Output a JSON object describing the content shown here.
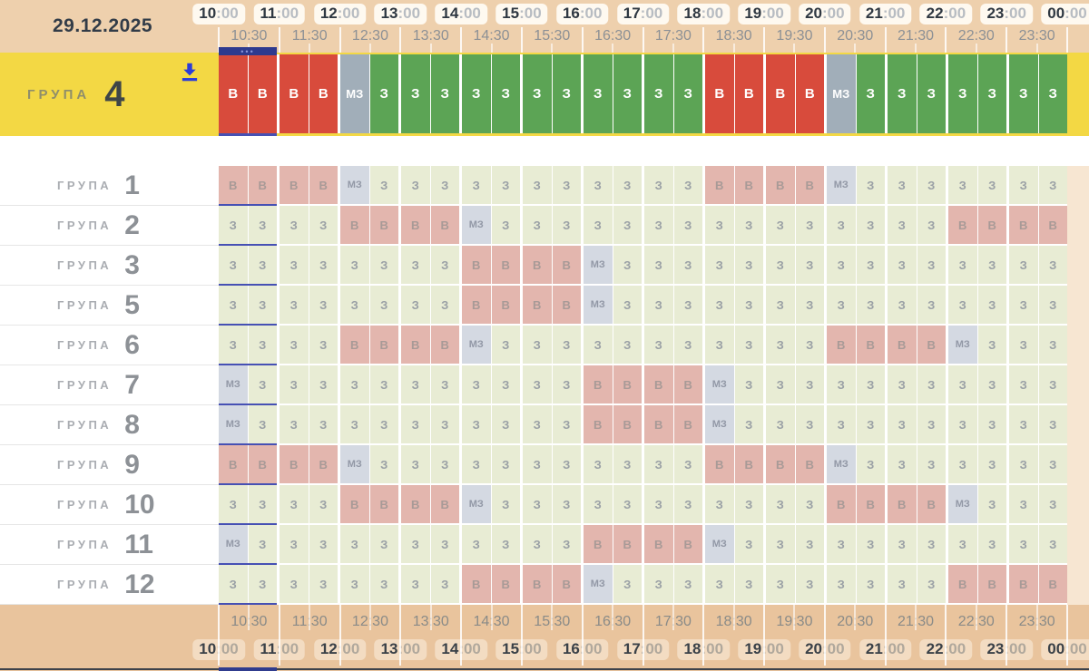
{
  "date": "29.12.2025",
  "timeline": {
    "hours": [
      "10:00",
      "11:00",
      "12:00",
      "13:00",
      "14:00",
      "15:00",
      "16:00",
      "17:00",
      "18:00",
      "19:00",
      "20:00",
      "21:00",
      "22:00",
      "23:00",
      "00:00"
    ],
    "half_hours": [
      "10:30",
      "11:30",
      "12:30",
      "13:30",
      "14:30",
      "15:30",
      "16:30",
      "17:30",
      "18:30",
      "19:30",
      "20:30",
      "21:30",
      "22:30",
      "23:30"
    ]
  },
  "selection": {
    "range_start": "10:00",
    "range_end": "11:00",
    "handle_dots": "•••"
  },
  "legend": {
    "cell_codes": [
      "В",
      "З",
      "МЗ"
    ],
    "colors": {
      "b_strong": "#d84b3c",
      "z_strong": "#5ca455",
      "mz_strong": "#a1aeb9",
      "b_muted": "#e3b6ae",
      "z_muted": "#e8ecd4",
      "mz_muted": "#d4d9e2",
      "active_row_bg": "#f3d844",
      "selection_navy": "#2e3a8e",
      "header_bg": "#eed0ad",
      "footer_bg": "#e9c49d",
      "download_icon": "#2b3cd8"
    }
  },
  "active_group": {
    "label": "ГРУПА",
    "number": "4",
    "cells": [
      "В",
      "В",
      "В",
      "В",
      "МЗ",
      "З",
      "З",
      "З",
      "З",
      "З",
      "З",
      "З",
      "З",
      "З",
      "З",
      "З",
      "В",
      "В",
      "В",
      "В",
      "МЗ",
      "З",
      "З",
      "З",
      "З",
      "З",
      "З",
      "З"
    ]
  },
  "groups": [
    {
      "label": "ГРУПА",
      "number": "1",
      "cells": [
        "В",
        "В",
        "В",
        "В",
        "МЗ",
        "З",
        "З",
        "З",
        "З",
        "З",
        "З",
        "З",
        "З",
        "З",
        "З",
        "З",
        "В",
        "В",
        "В",
        "В",
        "МЗ",
        "З",
        "З",
        "З",
        "З",
        "З",
        "З",
        "З"
      ]
    },
    {
      "label": "ГРУПА",
      "number": "2",
      "cells": [
        "З",
        "З",
        "З",
        "З",
        "В",
        "В",
        "В",
        "В",
        "МЗ",
        "З",
        "З",
        "З",
        "З",
        "З",
        "З",
        "З",
        "З",
        "З",
        "З",
        "З",
        "З",
        "З",
        "З",
        "З",
        "В",
        "В",
        "В",
        "В"
      ]
    },
    {
      "label": "ГРУПА",
      "number": "3",
      "cells": [
        "З",
        "З",
        "З",
        "З",
        "З",
        "З",
        "З",
        "З",
        "В",
        "В",
        "В",
        "В",
        "МЗ",
        "З",
        "З",
        "З",
        "З",
        "З",
        "З",
        "З",
        "З",
        "З",
        "З",
        "З",
        "З",
        "З",
        "З",
        "З"
      ]
    },
    {
      "label": "ГРУПА",
      "number": "5",
      "cells": [
        "З",
        "З",
        "З",
        "З",
        "З",
        "З",
        "З",
        "З",
        "В",
        "В",
        "В",
        "В",
        "МЗ",
        "З",
        "З",
        "З",
        "З",
        "З",
        "З",
        "З",
        "З",
        "З",
        "З",
        "З",
        "З",
        "З",
        "З",
        "З"
      ]
    },
    {
      "label": "ГРУПА",
      "number": "6",
      "cells": [
        "З",
        "З",
        "З",
        "З",
        "В",
        "В",
        "В",
        "В",
        "МЗ",
        "З",
        "З",
        "З",
        "З",
        "З",
        "З",
        "З",
        "З",
        "З",
        "З",
        "З",
        "В",
        "В",
        "В",
        "В",
        "МЗ",
        "З",
        "З",
        "З"
      ]
    },
    {
      "label": "ГРУПА",
      "number": "7",
      "cells": [
        "МЗ",
        "З",
        "З",
        "З",
        "З",
        "З",
        "З",
        "З",
        "З",
        "З",
        "З",
        "З",
        "В",
        "В",
        "В",
        "В",
        "МЗ",
        "З",
        "З",
        "З",
        "З",
        "З",
        "З",
        "З",
        "З",
        "З",
        "З",
        "З"
      ]
    },
    {
      "label": "ГРУПА",
      "number": "8",
      "cells": [
        "МЗ",
        "З",
        "З",
        "З",
        "З",
        "З",
        "З",
        "З",
        "З",
        "З",
        "З",
        "З",
        "В",
        "В",
        "В",
        "В",
        "МЗ",
        "З",
        "З",
        "З",
        "З",
        "З",
        "З",
        "З",
        "З",
        "З",
        "З",
        "З"
      ]
    },
    {
      "label": "ГРУПА",
      "number": "9",
      "cells": [
        "В",
        "В",
        "В",
        "В",
        "МЗ",
        "З",
        "З",
        "З",
        "З",
        "З",
        "З",
        "З",
        "З",
        "З",
        "З",
        "З",
        "В",
        "В",
        "В",
        "В",
        "МЗ",
        "З",
        "З",
        "З",
        "З",
        "З",
        "З",
        "З"
      ]
    },
    {
      "label": "ГРУПА",
      "number": "10",
      "cells": [
        "З",
        "З",
        "З",
        "З",
        "В",
        "В",
        "В",
        "В",
        "МЗ",
        "З",
        "З",
        "З",
        "З",
        "З",
        "З",
        "З",
        "З",
        "З",
        "З",
        "З",
        "В",
        "В",
        "В",
        "В",
        "МЗ",
        "З",
        "З",
        "З"
      ]
    },
    {
      "label": "ГРУПА",
      "number": "11",
      "cells": [
        "МЗ",
        "З",
        "З",
        "З",
        "З",
        "З",
        "З",
        "З",
        "З",
        "З",
        "З",
        "З",
        "В",
        "В",
        "В",
        "В",
        "МЗ",
        "З",
        "З",
        "З",
        "З",
        "З",
        "З",
        "З",
        "З",
        "З",
        "З",
        "З"
      ]
    },
    {
      "label": "ГРУПА",
      "number": "12",
      "cells": [
        "З",
        "З",
        "З",
        "З",
        "З",
        "З",
        "З",
        "З",
        "В",
        "В",
        "В",
        "В",
        "МЗ",
        "З",
        "З",
        "З",
        "З",
        "З",
        "З",
        "З",
        "З",
        "З",
        "З",
        "З",
        "В",
        "В",
        "В",
        "В"
      ]
    }
  ]
}
